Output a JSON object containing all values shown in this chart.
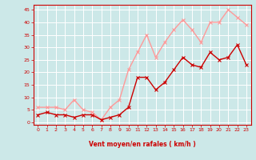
{
  "x": [
    0,
    1,
    2,
    3,
    4,
    5,
    6,
    7,
    8,
    9,
    10,
    11,
    12,
    13,
    14,
    15,
    16,
    17,
    18,
    19,
    20,
    21,
    22,
    23
  ],
  "vent_moyen": [
    3,
    4,
    3,
    3,
    2,
    3,
    3,
    1,
    2,
    3,
    6,
    18,
    18,
    13,
    16,
    21,
    26,
    23,
    22,
    28,
    25,
    26,
    31,
    23
  ],
  "rafales": [
    6,
    6,
    6,
    5,
    9,
    5,
    4,
    1,
    6,
    9,
    21,
    28,
    35,
    26,
    32,
    37,
    41,
    37,
    32,
    40,
    40,
    45,
    42,
    39
  ],
  "bg_color": "#cce8e8",
  "grid_color": "#aaaaaa",
  "line_color_moyen": "#cc0000",
  "line_color_rafales": "#ff9999",
  "xlabel": "Vent moyen/en rafales ( km/h )",
  "ylabel_ticks": [
    0,
    5,
    10,
    15,
    20,
    25,
    30,
    35,
    40,
    45
  ],
  "ylim": [
    -1,
    47
  ],
  "xlim": [
    -0.5,
    23.5
  ],
  "marker_size": 2.5,
  "line_width": 1.0,
  "wind_arrows": [
    "↓",
    "↓",
    "↓",
    "↓",
    "←",
    "↓",
    "←",
    "←",
    "→",
    "↓",
    "↓",
    "↓",
    "↓",
    "↓",
    "↓",
    "↓",
    "↓",
    "↓",
    "↓",
    "↓",
    "↓",
    "↓",
    "↓",
    "↓"
  ]
}
